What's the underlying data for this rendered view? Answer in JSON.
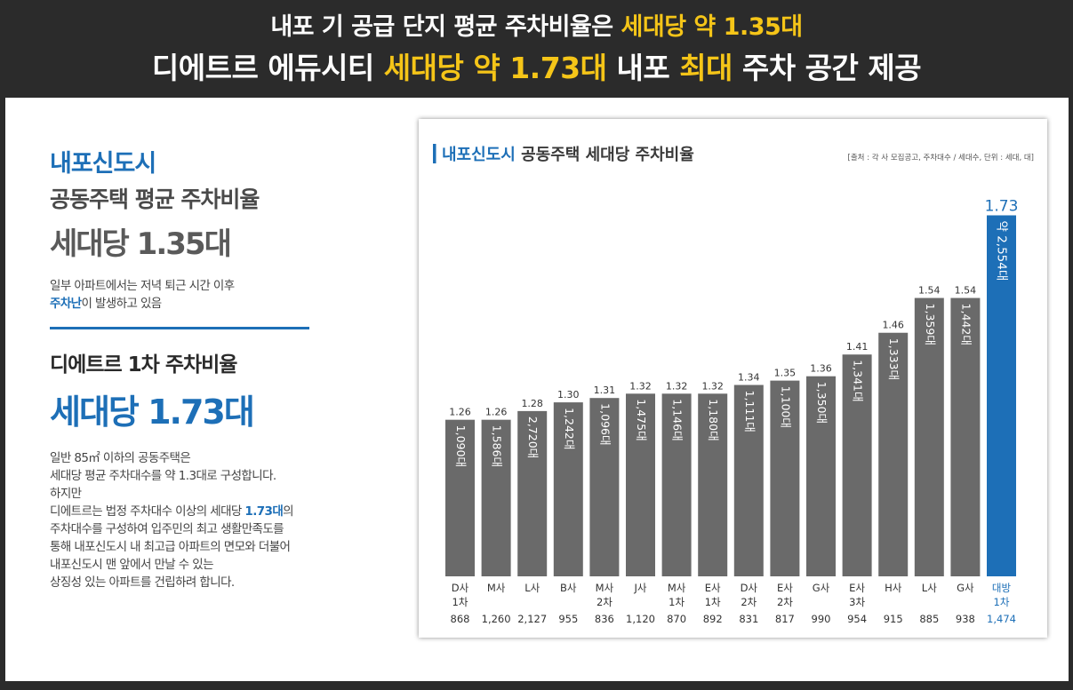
{
  "header": {
    "line1_prefix": "내포 기 공급 단지 평균 주차비율은 ",
    "line1_highlight": "세대당 약 1.35대",
    "line2_part1": "디에트르 에듀시티 ",
    "line2_highlight1": "세대당 약 1.73대",
    "line2_part2": " 내포 ",
    "line2_highlight2": "최대",
    "line2_part3": " 주차 공간 제공"
  },
  "left": {
    "city": "내포신도시",
    "avg_title": "공동주택 평균 주차비율",
    "avg_value": "세대당 1.35대",
    "note1_line1": "일부 아파트에서는 저녁 퇴근 시간 이후",
    "note1_line2_bold": "주차난",
    "note1_line2_rest": "이 발생하고 있음",
    "di_title": "디에트르 1차 주차비율",
    "di_value": "세대당 1.73대",
    "note2_line1": "일반 85㎡ 이하의 공동주택은",
    "note2_line2": "세대당 평균 주차대수를 약 1.3대로 구성합니다.",
    "note2_line3": "하지만",
    "note2_line4_pre": "디에트르는 법정 주차대수 이상의 세대당 ",
    "note2_line4_bold": "1.73대",
    "note2_line4_post": "의",
    "note2_line5": "주차대수를 구성하여 입주민의 최고 생활만족도를",
    "note2_line6": "통해 내포신도시 내 최고급 아파트의 면모와 더불어",
    "note2_line7": "내포신도시 맨 앞에서 만날 수 있는",
    "note2_line8": "상징성 있는 아파트를 건립하려 합니다."
  },
  "colors": {
    "gray_bar": "#6a6a6a",
    "highlight_bar": "#1d6fb7",
    "accent_yellow": "#f5c518",
    "brand_blue": "#1d6fb7"
  },
  "chart_data": {
    "type": "bar",
    "title_blue": "내포신도시",
    "title_rest": " 공동주택 세대당 주차비율",
    "source": "[출처 : 각 사 모집공고, 주차대수 / 세대수, 단위 : 세대, 대]",
    "ylim": [
      0.9,
      1.78
    ],
    "bars": [
      {
        "company": "D사",
        "phase": "1차",
        "units": "868",
        "ratio": 1.26,
        "ratio_label": "1.26",
        "spaces_label": "1,090대",
        "highlight": false
      },
      {
        "company": "M사",
        "phase": "",
        "units": "1,260",
        "ratio": 1.26,
        "ratio_label": "1.26",
        "spaces_label": "1,586대",
        "highlight": false
      },
      {
        "company": "L사",
        "phase": "",
        "units": "2,127",
        "ratio": 1.28,
        "ratio_label": "1.28",
        "spaces_label": "2,720대",
        "highlight": false
      },
      {
        "company": "B사",
        "phase": "",
        "units": "955",
        "ratio": 1.3,
        "ratio_label": "1.30",
        "spaces_label": "1,242대",
        "highlight": false
      },
      {
        "company": "M사",
        "phase": "2차",
        "units": "836",
        "ratio": 1.31,
        "ratio_label": "1.31",
        "spaces_label": "1,096대",
        "highlight": false
      },
      {
        "company": "J사",
        "phase": "",
        "units": "1,120",
        "ratio": 1.32,
        "ratio_label": "1.32",
        "spaces_label": "1,475대",
        "highlight": false
      },
      {
        "company": "M사",
        "phase": "1차",
        "units": "870",
        "ratio": 1.32,
        "ratio_label": "1.32",
        "spaces_label": "1,146대",
        "highlight": false
      },
      {
        "company": "E사",
        "phase": "1차",
        "units": "892",
        "ratio": 1.32,
        "ratio_label": "1.32",
        "spaces_label": "1,180대",
        "highlight": false
      },
      {
        "company": "D사",
        "phase": "2차",
        "units": "831",
        "ratio": 1.34,
        "ratio_label": "1.34",
        "spaces_label": "1,111대",
        "highlight": false
      },
      {
        "company": "E사",
        "phase": "2차",
        "units": "817",
        "ratio": 1.35,
        "ratio_label": "1.35",
        "spaces_label": "1,100대",
        "highlight": false
      },
      {
        "company": "G사",
        "phase": "",
        "units": "990",
        "ratio": 1.36,
        "ratio_label": "1.36",
        "spaces_label": "1,350대",
        "highlight": false
      },
      {
        "company": "E사",
        "phase": "3차",
        "units": "954",
        "ratio": 1.41,
        "ratio_label": "1.41",
        "spaces_label": "1,341대",
        "highlight": false
      },
      {
        "company": "H사",
        "phase": "",
        "units": "915",
        "ratio": 1.46,
        "ratio_label": "1.46",
        "spaces_label": "1,333대",
        "highlight": false
      },
      {
        "company": "L사",
        "phase": "",
        "units": "885",
        "ratio": 1.54,
        "ratio_label": "1.54",
        "spaces_label": "1,359대",
        "highlight": false
      },
      {
        "company": "G사",
        "phase": "",
        "units": "938",
        "ratio": 1.54,
        "ratio_label": "1.54",
        "spaces_label": "1,442대",
        "highlight": false
      },
      {
        "company": "대방",
        "phase": "1차",
        "units": "1,474",
        "ratio": 1.73,
        "ratio_label": "1.73",
        "spaces_label": "약 2,554대",
        "highlight": true
      }
    ]
  }
}
